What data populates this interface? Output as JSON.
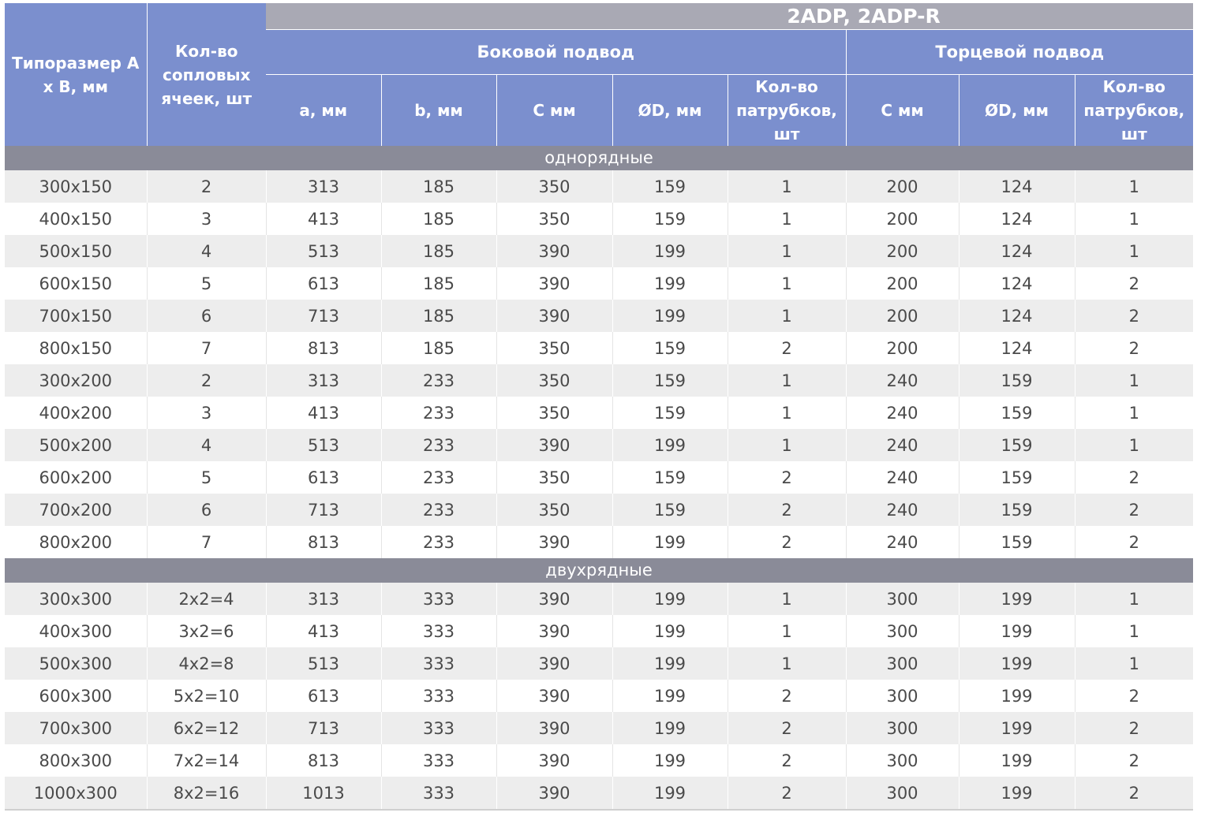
{
  "title": "2ADP, 2ADP-R",
  "headers": {
    "size": "Типоразмер A x B, мм",
    "cells": "Кол-во сопловых ячеек, шт",
    "side": "Боковой подвод",
    "end": "Торцевой подвод",
    "side_cols": [
      "a, мм",
      "b, мм",
      "C мм",
      "ØD, мм",
      "Кол-во патрубков, шт"
    ],
    "end_cols": [
      "C мм",
      "ØD, мм",
      "Кол-во патрубков, шт"
    ]
  },
  "sections": [
    {
      "label": "однорядные",
      "rows": [
        [
          "300x150",
          "2",
          "313",
          "185",
          "350",
          "159",
          "1",
          "200",
          "124",
          "1"
        ],
        [
          "400x150",
          "3",
          "413",
          "185",
          "350",
          "159",
          "1",
          "200",
          "124",
          "1"
        ],
        [
          "500x150",
          "4",
          "513",
          "185",
          "390",
          "199",
          "1",
          "200",
          "124",
          "1"
        ],
        [
          "600x150",
          "5",
          "613",
          "185",
          "390",
          "199",
          "1",
          "200",
          "124",
          "2"
        ],
        [
          "700x150",
          "6",
          "713",
          "185",
          "390",
          "199",
          "1",
          "200",
          "124",
          "2"
        ],
        [
          "800x150",
          "7",
          "813",
          "185",
          "350",
          "159",
          "2",
          "200",
          "124",
          "2"
        ],
        [
          "300x200",
          "2",
          "313",
          "233",
          "350",
          "159",
          "1",
          "240",
          "159",
          "1"
        ],
        [
          "400x200",
          "3",
          "413",
          "233",
          "350",
          "159",
          "1",
          "240",
          "159",
          "1"
        ],
        [
          "500x200",
          "4",
          "513",
          "233",
          "390",
          "199",
          "1",
          "240",
          "159",
          "1"
        ],
        [
          "600x200",
          "5",
          "613",
          "233",
          "350",
          "159",
          "2",
          "240",
          "159",
          "2"
        ],
        [
          "700x200",
          "6",
          "713",
          "233",
          "350",
          "159",
          "2",
          "240",
          "159",
          "2"
        ],
        [
          "800x200",
          "7",
          "813",
          "233",
          "390",
          "199",
          "2",
          "240",
          "159",
          "2"
        ]
      ]
    },
    {
      "label": "двухрядные",
      "rows": [
        [
          "300x300",
          "2x2=4",
          "313",
          "333",
          "390",
          "199",
          "1",
          "300",
          "199",
          "1"
        ],
        [
          "400x300",
          "3x2=6",
          "413",
          "333",
          "390",
          "199",
          "1",
          "300",
          "199",
          "1"
        ],
        [
          "500x300",
          "4x2=8",
          "513",
          "333",
          "390",
          "199",
          "1",
          "300",
          "199",
          "1"
        ],
        [
          "600x300",
          "5x2=10",
          "613",
          "333",
          "390",
          "199",
          "2",
          "300",
          "199",
          "2"
        ],
        [
          "700x300",
          "6x2=12",
          "713",
          "333",
          "390",
          "199",
          "2",
          "300",
          "199",
          "2"
        ],
        [
          "800x300",
          "7x2=14",
          "813",
          "333",
          "390",
          "199",
          "2",
          "300",
          "199",
          "2"
        ],
        [
          "1000x300",
          "8x2=16",
          "1013",
          "333",
          "390",
          "199",
          "2",
          "300",
          "199",
          "2"
        ]
      ]
    }
  ]
}
